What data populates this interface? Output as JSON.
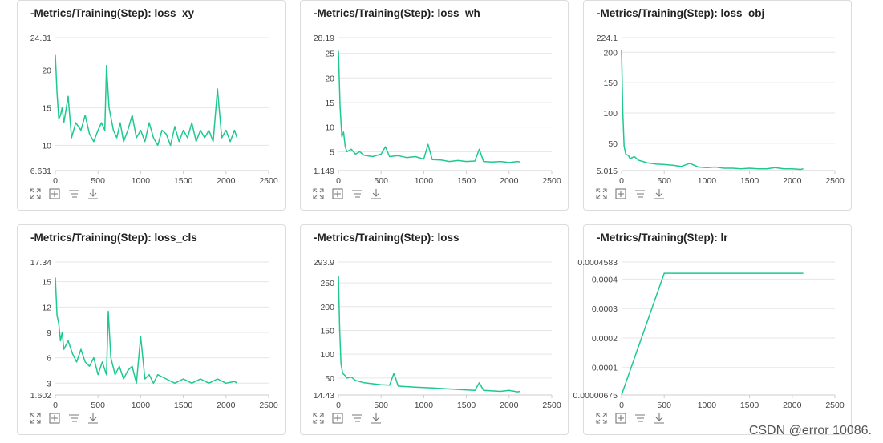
{
  "colors": {
    "line": "#1ec98f",
    "grid": "#e6e6e6",
    "axis": "#cccccc",
    "tick": "#444444",
    "icon": "#777777"
  },
  "watermark": "CSDN @error 10086.",
  "toolbar_icons": [
    "expand-icon",
    "fit-data-icon",
    "line-style-icon",
    "download-icon"
  ],
  "chart_data": [
    {
      "type": "line",
      "title": "-Metrics/Training(Step): loss_xy",
      "xlim": [
        0,
        2500
      ],
      "ylim": [
        6.631,
        24.31
      ],
      "xticks": [
        0,
        500,
        1000,
        1500,
        2000,
        2500
      ],
      "xtick_labels": [
        "0",
        "500",
        "1000",
        "1500",
        "2000",
        "2500"
      ],
      "yticks": [
        6.631,
        10,
        15,
        20,
        24.31
      ],
      "ytick_labels": [
        "6.631",
        "10",
        "15",
        "20",
        "24.31"
      ],
      "series": [
        {
          "name": "loss_xy",
          "x": [
            0,
            20,
            40,
            60,
            80,
            100,
            150,
            190,
            240,
            300,
            350,
            400,
            450,
            500,
            540,
            580,
            600,
            630,
            680,
            720,
            760,
            800,
            850,
            900,
            950,
            1000,
            1050,
            1100,
            1150,
            1200,
            1250,
            1300,
            1350,
            1400,
            1450,
            1500,
            1550,
            1600,
            1650,
            1700,
            1750,
            1800,
            1850,
            1900,
            1950,
            2000,
            2050,
            2100,
            2130
          ],
          "y": [
            22,
            17,
            13.5,
            14,
            15,
            13,
            16.5,
            11,
            13,
            12,
            14,
            11.5,
            10.5,
            12,
            13,
            12,
            20.6,
            15,
            12,
            11,
            13,
            10.5,
            12,
            14,
            11,
            12,
            10.5,
            13,
            11,
            10,
            12,
            11.5,
            10,
            12.5,
            10.5,
            12,
            11,
            13,
            10.5,
            12,
            11,
            12,
            10.5,
            17.5,
            11,
            12,
            10.5,
            12,
            11
          ]
        }
      ]
    },
    {
      "type": "line",
      "title": "-Metrics/Training(Step): loss_wh",
      "xlim": [
        0,
        2500
      ],
      "ylim": [
        1.149,
        28.19
      ],
      "xticks": [
        0,
        500,
        1000,
        1500,
        2000,
        2500
      ],
      "xtick_labels": [
        "0",
        "500",
        "1000",
        "1500",
        "2000",
        "2500"
      ],
      "yticks": [
        1.149,
        5,
        10,
        15,
        20,
        25,
        28.19
      ],
      "ytick_labels": [
        "1.149",
        "5",
        "10",
        "15",
        "20",
        "25",
        "28.19"
      ],
      "series": [
        {
          "name": "loss_wh",
          "x": [
            0,
            20,
            40,
            60,
            80,
            100,
            150,
            200,
            250,
            300,
            400,
            500,
            550,
            600,
            700,
            800,
            900,
            1000,
            1050,
            1100,
            1200,
            1300,
            1400,
            1500,
            1600,
            1650,
            1700,
            1800,
            1900,
            2000,
            2100,
            2130
          ],
          "y": [
            25.5,
            14,
            8,
            9,
            6,
            5,
            5.5,
            4.5,
            5,
            4.3,
            4,
            4.5,
            6,
            4,
            4.2,
            3.8,
            4,
            3.5,
            6.5,
            3.4,
            3.3,
            3,
            3.2,
            3,
            3.1,
            5.5,
            3,
            2.9,
            3,
            2.8,
            3,
            2.9
          ]
        }
      ]
    },
    {
      "type": "line",
      "title": "-Metrics/Training(Step): loss_obj",
      "xlim": [
        0,
        2500
      ],
      "ylim": [
        5.015,
        224.1
      ],
      "xticks": [
        0,
        500,
        1000,
        1500,
        2000,
        2500
      ],
      "xtick_labels": [
        "0",
        "500",
        "1000",
        "1500",
        "2000",
        "2500"
      ],
      "yticks": [
        5.015,
        50,
        100,
        150,
        200,
        224.1
      ],
      "ytick_labels": [
        "5.015",
        "50",
        "100",
        "150",
        "200",
        "224.1"
      ],
      "series": [
        {
          "name": "loss_obj",
          "x": [
            0,
            15,
            30,
            50,
            80,
            100,
            150,
            200,
            250,
            300,
            400,
            500,
            600,
            700,
            800,
            900,
            1000,
            1100,
            1200,
            1300,
            1400,
            1500,
            1600,
            1700,
            1800,
            1900,
            2000,
            2100,
            2130
          ],
          "y": [
            203,
            100,
            45,
            32,
            30,
            25,
            28,
            22,
            20,
            18,
            16,
            15,
            14,
            12,
            17,
            11,
            10,
            11,
            9,
            9,
            8,
            9,
            8,
            8,
            10,
            8,
            8,
            7,
            8
          ]
        }
      ]
    },
    {
      "type": "line",
      "title": "-Metrics/Training(Step): loss_cls",
      "xlim": [
        0,
        2500
      ],
      "ylim": [
        1.602,
        17.34
      ],
      "xticks": [
        0,
        500,
        1000,
        1500,
        2000,
        2500
      ],
      "xtick_labels": [
        "0",
        "500",
        "1000",
        "1500",
        "2000",
        "2500"
      ],
      "yticks": [
        1.602,
        3,
        6,
        9,
        12,
        15,
        17.34
      ],
      "ytick_labels": [
        "1.602",
        "3",
        "6",
        "9",
        "12",
        "15",
        "17.34"
      ],
      "series": [
        {
          "name": "loss_cls",
          "x": [
            0,
            20,
            40,
            60,
            80,
            100,
            150,
            200,
            250,
            300,
            350,
            400,
            450,
            500,
            550,
            600,
            620,
            650,
            700,
            750,
            800,
            850,
            900,
            950,
            1000,
            1050,
            1100,
            1150,
            1200,
            1300,
            1400,
            1500,
            1600,
            1700,
            1800,
            1900,
            2000,
            2100,
            2130
          ],
          "y": [
            15.5,
            11,
            10,
            8,
            9,
            7,
            8,
            6.5,
            5.5,
            7,
            5.5,
            5,
            6,
            4,
            5.5,
            4,
            11.5,
            6,
            4,
            5,
            3.5,
            4.5,
            5,
            3,
            8.5,
            3.5,
            4,
            3,
            4,
            3.5,
            3,
            3.5,
            3,
            3.5,
            3,
            3.5,
            3,
            3.2,
            3
          ]
        }
      ]
    },
    {
      "type": "line",
      "title": "-Metrics/Training(Step): loss",
      "xlim": [
        0,
        2500
      ],
      "ylim": [
        14.43,
        293.9
      ],
      "xticks": [
        0,
        500,
        1000,
        1500,
        2000,
        2500
      ],
      "xtick_labels": [
        "0",
        "500",
        "1000",
        "1500",
        "2000",
        "2500"
      ],
      "yticks": [
        14.43,
        50,
        100,
        150,
        200,
        250,
        293.9
      ],
      "ytick_labels": [
        "14.43",
        "50",
        "100",
        "150",
        "200",
        "250",
        "293.9"
      ],
      "series": [
        {
          "name": "loss",
          "x": [
            0,
            15,
            30,
            50,
            80,
            100,
            150,
            200,
            300,
            400,
            500,
            600,
            650,
            700,
            800,
            900,
            1000,
            1100,
            1200,
            1300,
            1400,
            1500,
            1600,
            1650,
            1700,
            1800,
            1900,
            2000,
            2100,
            2130
          ],
          "y": [
            265,
            150,
            80,
            60,
            55,
            50,
            52,
            45,
            40,
            38,
            36,
            35,
            60,
            33,
            32,
            31,
            30,
            29,
            28,
            27,
            26,
            25,
            24,
            40,
            24,
            23,
            22,
            24,
            21,
            22
          ]
        }
      ]
    },
    {
      "type": "line",
      "title": "-Metrics/Training(Step): lr",
      "xlim": [
        0,
        2500
      ],
      "ylim": [
        6.75e-06,
        0.0004583
      ],
      "xticks": [
        0,
        500,
        1000,
        1500,
        2000,
        2500
      ],
      "xtick_labels": [
        "0",
        "500",
        "1000",
        "1500",
        "2000",
        "2500"
      ],
      "yticks": [
        6.75e-06,
        0.0001,
        0.0002,
        0.0003,
        0.0004,
        0.0004583
      ],
      "ytick_labels": [
        "0.00000675",
        "0.0001",
        "0.0002",
        "0.0003",
        "0.0004",
        "0.0004583"
      ],
      "series": [
        {
          "name": "lr",
          "x": [
            0,
            500,
            2130
          ],
          "y": [
            6.75e-06,
            0.00042,
            0.00042
          ]
        }
      ]
    }
  ]
}
